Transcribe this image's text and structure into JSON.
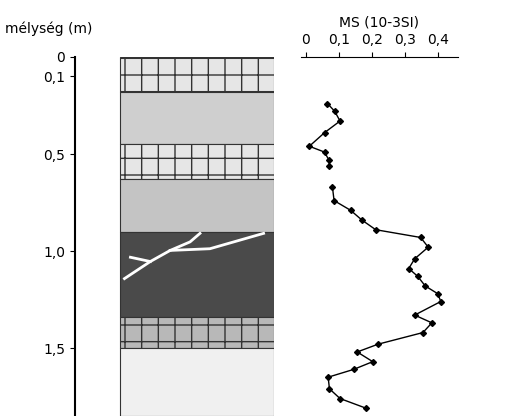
{
  "chart_data": {
    "type": "line",
    "title": "MS (10-3SI)",
    "y_label": "mélység (m)",
    "x": [
      0.066,
      0.088,
      0.104,
      0.057,
      0.011,
      0.057,
      0.07,
      0.072,
      null,
      0.081,
      0.086,
      0.136,
      0.17,
      0.212,
      0.348,
      0.371,
      0.33,
      0.312,
      0.339,
      0.362,
      0.4,
      0.409,
      0.33,
      0.382,
      0.355,
      0.219,
      0.156,
      0.203,
      0.145,
      0.068,
      0.072,
      0.104,
      0.183
    ],
    "y": [
      0.24,
      0.28,
      0.33,
      0.39,
      0.46,
      0.49,
      0.53,
      0.56,
      null,
      0.67,
      0.74,
      0.79,
      0.84,
      0.89,
      0.93,
      0.98,
      1.04,
      1.09,
      1.13,
      1.18,
      1.22,
      1.26,
      1.33,
      1.37,
      1.42,
      1.48,
      1.52,
      1.57,
      1.61,
      1.65,
      1.71,
      1.76,
      1.81
    ],
    "color": "#000000",
    "marker": "diamond",
    "line_style": "solid",
    "xlim": [
      -0.015,
      0.46
    ],
    "xticks": [
      0,
      {
        "value": 0.1,
        "label": "0,1"
      },
      {
        "value": 0.2,
        "label": "0,2"
      },
      {
        "value": 0.3,
        "label": "0,3"
      },
      {
        "value": 0.4,
        "label": "0,4"
      }
    ],
    "ylim": [
      0,
      1.85
    ],
    "yticks": [
      0,
      {
        "value": 0.1,
        "label": "0,1"
      },
      {
        "value": 0.5,
        "label": "0,5"
      },
      {
        "value": 1.0,
        "label": "1,0"
      },
      {
        "value": 1.5,
        "label": "1,5"
      }
    ],
    "layers": [
      {
        "top": 0,
        "bottom": 0.18,
        "type": "brick",
        "color": "#e6e6e6"
      },
      {
        "top": 0.18,
        "bottom": 0.45,
        "type": "plain",
        "color": "#cfcfcf"
      },
      {
        "top": 0.45,
        "bottom": 0.63,
        "type": "brick",
        "color": "#e6e6e6"
      },
      {
        "top": 0.63,
        "bottom": 0.9,
        "type": "plain",
        "color": "#c4c4c4"
      },
      {
        "top": 0.9,
        "bottom": 1.34,
        "type": "cracked",
        "color": "#4a4a4a"
      },
      {
        "top": 1.34,
        "bottom": 1.5,
        "type": "brick",
        "color": "#b8b8b8"
      },
      {
        "top": 1.5,
        "bottom": 1.85,
        "type": "plain",
        "color": "#f0f0f0"
      }
    ]
  }
}
